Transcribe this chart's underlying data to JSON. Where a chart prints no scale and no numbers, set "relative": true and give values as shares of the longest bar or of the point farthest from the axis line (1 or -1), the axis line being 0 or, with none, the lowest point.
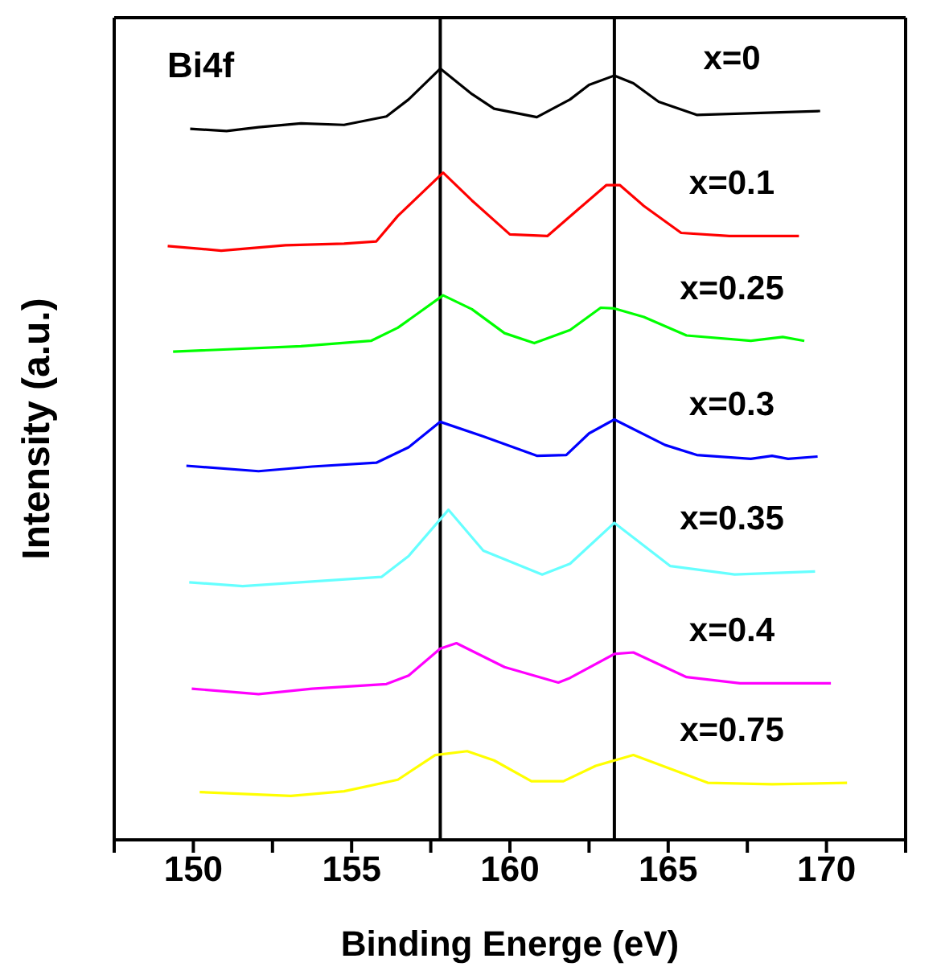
{
  "chart_data": {
    "type": "line",
    "xlabel": "Binding Energe (eV)",
    "ylabel": "Intensity (a.u.)",
    "relative": true,
    "marker": "none",
    "legend": false,
    "annotations": [
      "Bi4f"
    ],
    "xlim": [
      147.5,
      172.5
    ],
    "xticks": [
      {
        "value": 147.5,
        "label": null
      },
      150,
      {
        "value": 152.5,
        "label": null
      },
      155,
      {
        "value": 157.5,
        "label": null
      },
      160,
      {
        "value": 162.5,
        "label": null
      },
      165,
      {
        "value": 167.5,
        "label": null
      },
      170,
      {
        "value": 172.5,
        "label": null
      }
    ],
    "ref_lines": [
      {
        "axis": "x",
        "value": 157.8,
        "color": "#000000"
      },
      {
        "axis": "x",
        "value": 163.3,
        "color": "#000000"
      }
    ],
    "series": [
      {
        "name": "x=0",
        "color": "#000000",
        "x": [
          149.9,
          151.05,
          152.06,
          153.4,
          154.76,
          156.1,
          156.8,
          157.8,
          158.8,
          159.5,
          160.85,
          161.9,
          162.5,
          163.3,
          163.9,
          164.7,
          165.9,
          169.8
        ],
        "values": [
          0.922,
          0.919,
          0.924,
          0.929,
          0.927,
          0.938,
          0.96,
          1.0,
          0.967,
          0.948,
          0.937,
          0.96,
          0.979,
          0.991,
          0.981,
          0.957,
          0.94,
          0.945
        ]
      },
      {
        "name": "x=0.1",
        "color": "#ff0000",
        "x": [
          149.19,
          150.88,
          152.91,
          154.76,
          155.78,
          156.46,
          157.89,
          158.8,
          160.0,
          161.19,
          162.2,
          163.05,
          163.47,
          164.23,
          165.41,
          166.93,
          169.13
        ],
        "values": [
          0.77,
          0.764,
          0.771,
          0.773,
          0.776,
          0.809,
          0.865,
          0.829,
          0.785,
          0.783,
          0.819,
          0.849,
          0.849,
          0.822,
          0.787,
          0.783,
          0.783
        ]
      },
      {
        "name": "x=0.25",
        "color": "#00ff00",
        "x": [
          149.36,
          153.4,
          155.61,
          156.46,
          157.89,
          158.8,
          159.83,
          160.77,
          161.9,
          162.87,
          163.3,
          164.23,
          165.58,
          167.61,
          168.62,
          169.3
        ],
        "values": [
          0.633,
          0.64,
          0.647,
          0.664,
          0.706,
          0.688,
          0.657,
          0.644,
          0.661,
          0.69,
          0.689,
          0.678,
          0.654,
          0.647,
          0.652,
          0.647
        ]
      },
      {
        "name": "x=0.3",
        "color": "#0000ff",
        "x": [
          149.78,
          152.06,
          153.75,
          155.78,
          156.8,
          157.8,
          159.16,
          160.85,
          161.78,
          162.5,
          163.3,
          164.9,
          165.9,
          167.61,
          168.28,
          168.79,
          169.72
        ],
        "values": [
          0.485,
          0.478,
          0.484,
          0.489,
          0.509,
          0.542,
          0.523,
          0.498,
          0.499,
          0.527,
          0.545,
          0.512,
          0.499,
          0.494,
          0.498,
          0.494,
          0.497
        ]
      },
      {
        "name": "x=0.35",
        "color": "#66ffff",
        "x": [
          149.87,
          151.56,
          153.75,
          155.95,
          156.8,
          158.06,
          159.16,
          161.02,
          161.9,
          163.3,
          165.07,
          167.1,
          169.64
        ],
        "values": [
          0.334,
          0.329,
          0.335,
          0.341,
          0.368,
          0.428,
          0.375,
          0.344,
          0.358,
          0.411,
          0.355,
          0.344,
          0.348
        ]
      },
      {
        "name": "x=0.4",
        "color": "#ff00ff",
        "x": [
          149.95,
          152.06,
          153.75,
          156.1,
          156.8,
          157.8,
          158.31,
          159.83,
          161.53,
          161.9,
          163.3,
          163.9,
          165.58,
          167.27,
          170.14
        ],
        "values": [
          0.196,
          0.189,
          0.196,
          0.202,
          0.213,
          0.248,
          0.255,
          0.224,
          0.204,
          0.21,
          0.241,
          0.243,
          0.211,
          0.203,
          0.203
        ]
      },
      {
        "name": "x=0.75",
        "color": "#ffff00",
        "x": [
          150.2,
          153.08,
          154.76,
          156.46,
          157.64,
          158.65,
          159.5,
          160.68,
          161.69,
          162.71,
          163.9,
          166.25,
          168.28,
          170.65
        ],
        "values": [
          0.062,
          0.057,
          0.063,
          0.078,
          0.11,
          0.115,
          0.103,
          0.076,
          0.076,
          0.096,
          0.11,
          0.074,
          0.072,
          0.074
        ]
      }
    ]
  }
}
